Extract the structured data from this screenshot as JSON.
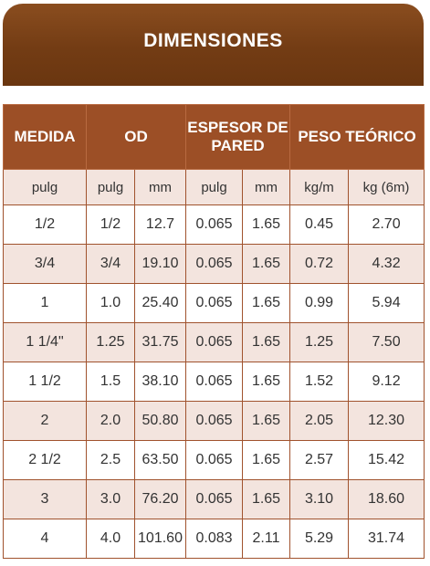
{
  "title": "DIMENSIONES",
  "table": {
    "group_headers": [
      "MEDIDA",
      "OD",
      "ESPESOR DE PARED",
      "PESO TEÓRICO"
    ],
    "unit_headers": [
      "pulg",
      "pulg",
      "mm",
      "pulg",
      "mm",
      "kg/m",
      "kg (6m)"
    ],
    "rows": [
      [
        "1/2",
        "1/2",
        "12.7",
        "0.065",
        "1.65",
        "0.45",
        "2.70"
      ],
      [
        "3/4",
        "3/4",
        "19.10",
        "0.065",
        "1.65",
        "0.72",
        "4.32"
      ],
      [
        "1",
        "1.0",
        "25.40",
        "0.065",
        "1.65",
        "0.99",
        "5.94"
      ],
      [
        "1 1/4\"",
        "1.25",
        "31.75",
        "0.065",
        "1.65",
        "1.25",
        "7.50"
      ],
      [
        "1 1/2",
        "1.5",
        "38.10",
        "0.065",
        "1.65",
        "1.52",
        "9.12"
      ],
      [
        "2",
        "2.0",
        "50.80",
        "0.065",
        "1.65",
        "2.05",
        "12.30"
      ],
      [
        "2 1/2",
        "2.5",
        "63.50",
        "0.065",
        "1.65",
        "2.57",
        "15.42"
      ],
      [
        "3",
        "3.0",
        "76.20",
        "0.065",
        "1.65",
        "3.10",
        "18.60"
      ],
      [
        "4",
        "4.0",
        "101.60",
        "0.083",
        "2.11",
        "5.29",
        "31.74"
      ]
    ]
  },
  "colors": {
    "banner": "#733c14",
    "header": "#9c4f26",
    "stripe": "#f3e4de",
    "border": "#a0522d"
  }
}
